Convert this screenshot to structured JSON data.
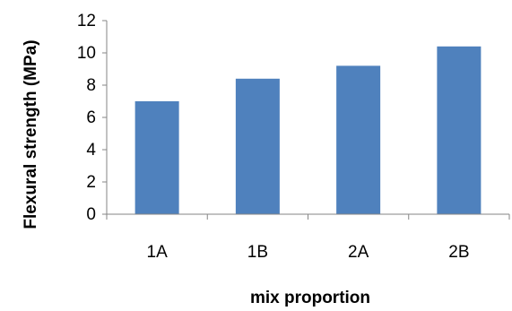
{
  "chart_data": {
    "type": "bar",
    "title": "",
    "xlabel": "mix proportion",
    "ylabel": "Flexural strength (MPa)",
    "categories": [
      "1A",
      "1B",
      "2A",
      "2B"
    ],
    "values": [
      7.0,
      8.4,
      9.2,
      10.4
    ],
    "ylim": [
      0,
      12
    ],
    "yticks": [
      "0",
      "2",
      "4",
      "6",
      "8",
      "10",
      "12"
    ],
    "grid": false,
    "legend": "none",
    "bar_color": "#4f81bd",
    "axis_color": "#868686"
  }
}
